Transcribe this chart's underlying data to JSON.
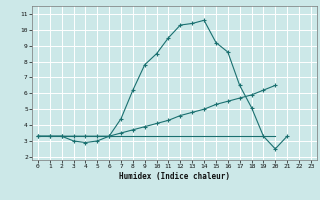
{
  "title": "",
  "xlabel": "Humidex (Indice chaleur)",
  "xlim": [
    -0.5,
    23.5
  ],
  "ylim": [
    1.8,
    11.5
  ],
  "xticks": [
    0,
    1,
    2,
    3,
    4,
    5,
    6,
    7,
    8,
    9,
    10,
    11,
    12,
    13,
    14,
    15,
    16,
    17,
    18,
    19,
    20,
    21,
    22,
    23
  ],
  "yticks": [
    2,
    3,
    4,
    5,
    6,
    7,
    8,
    9,
    10,
    11
  ],
  "bg_color": "#cce8e8",
  "grid_color": "#ffffff",
  "line_color": "#1a7070",
  "line1_x": [
    0,
    1,
    2,
    3,
    4,
    5,
    6,
    7,
    8,
    9,
    10,
    11,
    12,
    13,
    14,
    15,
    16,
    17,
    18,
    19,
    20,
    21,
    22
  ],
  "line1_y": [
    3.3,
    3.3,
    3.3,
    3.0,
    2.9,
    3.0,
    3.3,
    4.4,
    6.2,
    7.8,
    8.5,
    9.5,
    10.3,
    10.4,
    10.6,
    9.2,
    8.6,
    6.5,
    5.1,
    3.3,
    2.5,
    3.3,
    null
  ],
  "line2_x": [
    0,
    1,
    2,
    3,
    4,
    5,
    6,
    7,
    8,
    9,
    10,
    11,
    12,
    13,
    14,
    15,
    16,
    17,
    18,
    19,
    20
  ],
  "line2_y": [
    3.3,
    3.3,
    3.3,
    3.3,
    3.3,
    3.3,
    3.3,
    3.5,
    3.7,
    3.9,
    4.1,
    4.3,
    4.6,
    4.8,
    5.0,
    5.3,
    5.5,
    5.7,
    5.9,
    6.2,
    6.5
  ],
  "line3_x": [
    0,
    1,
    2,
    3,
    4,
    5,
    6,
    7,
    8,
    9,
    10,
    11,
    12,
    13,
    14,
    15,
    16,
    17,
    18,
    19,
    20
  ],
  "line3_y": [
    3.3,
    3.3,
    3.3,
    3.3,
    3.3,
    3.3,
    3.3,
    3.3,
    3.3,
    3.3,
    3.3,
    3.3,
    3.3,
    3.3,
    3.3,
    3.3,
    3.3,
    3.3,
    3.3,
    3.3,
    3.3
  ]
}
